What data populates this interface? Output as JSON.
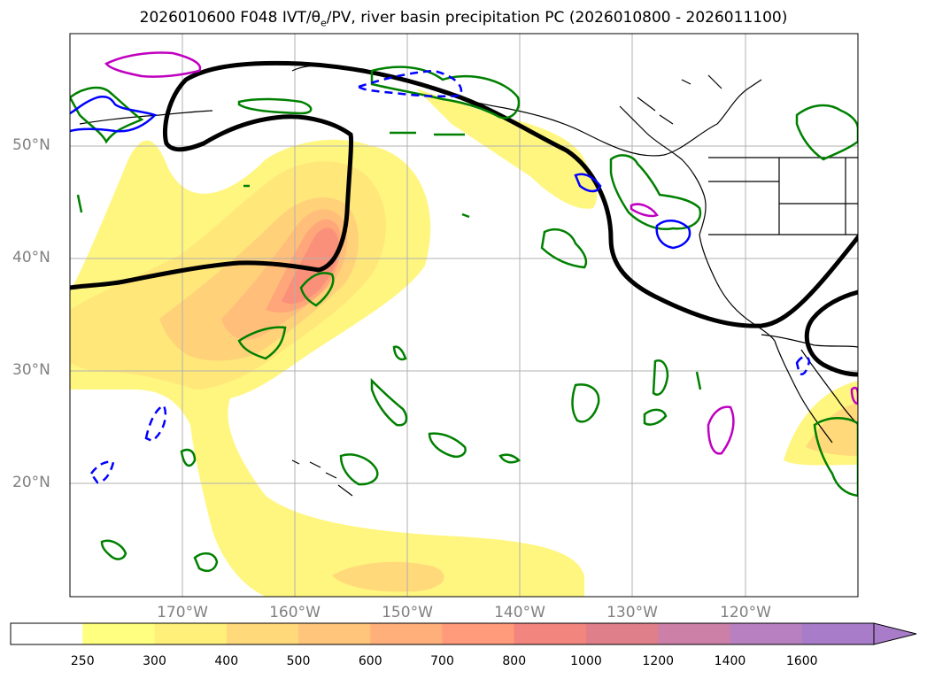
{
  "title": "2026010600 F048 IVT/θe/PV, river basin precipitation PC (2026010800 - 2026011100)",
  "title_parts": {
    "prefix": "2026010600 F048 IVT/θ",
    "sub": "e",
    "suffix": "/PV, river basin precipitation PC (2026010800 - 2026011100)"
  },
  "lat_labels": [
    "50°N",
    "40°N",
    "30°N",
    "20°N"
  ],
  "lon_labels": [
    "170°W",
    "160°W",
    "150°W",
    "140°W",
    "130°W",
    "120°W"
  ],
  "colorbar": {
    "ticks": [
      "250",
      "300",
      "400",
      "500",
      "600",
      "700",
      "800",
      "1000",
      "1200",
      "1400",
      "1600"
    ],
    "colors": [
      "#ffffff",
      "#ffff80",
      "#fff07a",
      "#ffd97a",
      "#ffc57a",
      "#ffb07a",
      "#ff9a7a",
      "#f2857e",
      "#de7f8a",
      "#cc80a8",
      "#b880c0",
      "#a87cc8"
    ],
    "extend": "max"
  },
  "chart_data": {
    "type": "map",
    "projection": "lat-lon",
    "lon_range": [
      -180,
      -110
    ],
    "lat_range": [
      10,
      60
    ],
    "grid": true,
    "fill_field": "IVT",
    "fill_levels": [
      250,
      300,
      400,
      500,
      600,
      700,
      800,
      1000,
      1200,
      1400,
      1600
    ],
    "contours": [
      {
        "color": "#000000",
        "style": "solid",
        "count": 2
      },
      {
        "color": "#008000",
        "style": "solid"
      },
      {
        "color": "#0000ff",
        "style": "solid"
      },
      {
        "color": "#0000ff",
        "style": "dashed"
      },
      {
        "color": "#c000c0",
        "style": "solid"
      }
    ]
  }
}
